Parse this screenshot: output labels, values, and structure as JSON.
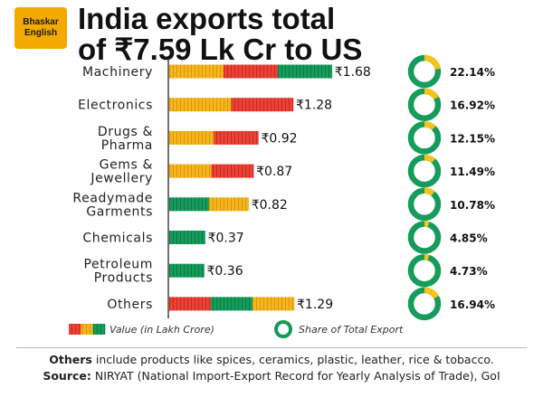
{
  "brand": {
    "line1": "Bhaskar",
    "line2": "English"
  },
  "title": {
    "line1": "India exports total",
    "line2": "of ₹7.59 Lk Cr to US"
  },
  "chart_data": {
    "type": "bar",
    "title": "India exports total of ₹7.59 Lk Cr to US",
    "unit": "₹ Lakh Crore",
    "categories": [
      [
        "Machinery"
      ],
      [
        "Electronics"
      ],
      [
        "Drugs &",
        "Pharma"
      ],
      [
        "Gems &",
        "Jewellery"
      ],
      [
        "Readymade",
        "Garments"
      ],
      [
        "Chemicals"
      ],
      [
        "Petroleum",
        "Products"
      ],
      [
        "Others"
      ]
    ],
    "values": [
      1.68,
      1.28,
      0.92,
      0.87,
      0.82,
      0.37,
      0.36,
      1.29
    ],
    "value_labels": [
      "₹1.68",
      "₹1.28",
      "₹0.92",
      "₹0.87",
      "₹0.82",
      "₹0.37",
      "₹0.36",
      "₹1.29"
    ],
    "bar_segments": [
      [
        "yellow",
        "red",
        "green"
      ],
      [
        "yellow",
        "red"
      ],
      [
        "yellow",
        "red"
      ],
      [
        "yellow",
        "red"
      ],
      [
        "green",
        "yellow"
      ],
      [
        "green"
      ],
      [
        "green"
      ],
      [
        "red",
        "green",
        "yellow"
      ]
    ],
    "share_percent": [
      22.14,
      16.92,
      12.15,
      11.49,
      10.78,
      4.85,
      4.73,
      16.94
    ],
    "share_labels": [
      "22.14%",
      "16.92%",
      "12.15%",
      "11.49%",
      "10.78%",
      "4.85%",
      "4.73%",
      "16.94%"
    ],
    "legend": {
      "bar": "Value (in Lakh Crore)",
      "donut": "Share of Total Export"
    }
  },
  "colors": {
    "red": "#ea4236",
    "yellow": "#f6b51b",
    "green": "#159c5b",
    "donut_share": "#f6c21c",
    "donut_rest": "#159c5b",
    "axis": "#222222"
  },
  "notes": {
    "others_bold": "Others",
    "others_text": " include products like spices, ceramics, plastic, leather, rice & tobacco.",
    "source_bold": "Source:",
    "source_text": " NIRYAT (National Import-Export Record for Yearly Analysis of Trade), GoI"
  }
}
